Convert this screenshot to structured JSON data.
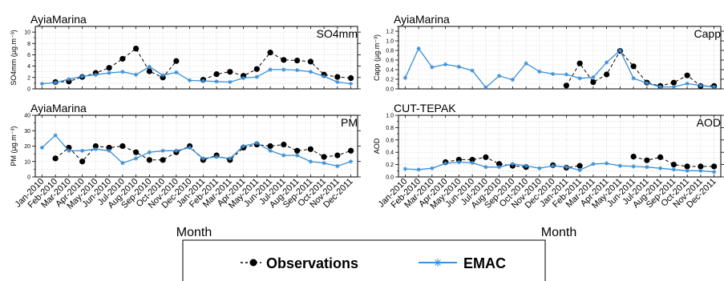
{
  "legend": {
    "observations_label": "Observations",
    "emac_label": "EMAC",
    "colors": {
      "observations": "#000000",
      "emac": "#3b8fd6"
    }
  },
  "x_axis": {
    "title": "Month",
    "tick_labels": [
      "Jan-2010",
      "Feb-2010",
      "Mar-2010",
      "Apr-2010",
      "May-2010",
      "Jun-2010",
      "Jul-2010",
      "Aug-2010",
      "Sep-2010",
      "Oct-2010",
      "Nov-2010",
      "Dec-2010",
      "Jan-2011",
      "Feb-2011",
      "Mar-2011",
      "Apr-2011",
      "May-2011",
      "Jun-2011",
      "Jul-2011",
      "Aug-2011",
      "Sep-2011",
      "Oct-2011",
      "Nov-2011",
      "Dec-2011"
    ]
  },
  "chart_data": [
    {
      "type": "line",
      "title_left": "AyiaMarina",
      "title_right": "SO4mm",
      "ylabel": "SO4mm (µg.m⁻³)",
      "ylim": [
        0,
        11
      ],
      "yticks": [
        0,
        2,
        4,
        6,
        8,
        10
      ],
      "grid": true,
      "x": [
        "Jan-2010",
        "Feb-2010",
        "Mar-2010",
        "Apr-2010",
        "May-2010",
        "Jun-2010",
        "Jul-2010",
        "Aug-2010",
        "Sep-2010",
        "Oct-2010",
        "Nov-2010",
        "Dec-2010",
        "Jan-2011",
        "Feb-2011",
        "Mar-2011",
        "Apr-2011",
        "May-2011",
        "Jun-2011",
        "Jul-2011",
        "Aug-2011",
        "Sep-2011",
        "Oct-2011",
        "Nov-2011",
        "Dec-2011"
      ],
      "series": [
        {
          "name": "Observations",
          "values": [
            null,
            1.2,
            1.3,
            2.1,
            2.8,
            3.7,
            5.3,
            7.1,
            3.1,
            2.0,
            4.9,
            null,
            1.6,
            2.6,
            3.0,
            2.3,
            3.5,
            6.4,
            5.1,
            5.0,
            4.8,
            2.5,
            2.1,
            1.9
          ]
        },
        {
          "name": "EMAC",
          "values": [
            0.9,
            1.1,
            1.7,
            2.2,
            2.5,
            2.8,
            3.0,
            2.5,
            3.9,
            2.4,
            2.9,
            1.5,
            1.4,
            1.3,
            1.2,
            1.9,
            2.1,
            3.4,
            3.4,
            3.3,
            3.0,
            2.2,
            1.2,
            0.9
          ]
        }
      ]
    },
    {
      "type": "line",
      "title_left": "AyiaMarina",
      "title_right": "Capp",
      "ylabel": "Capp (µg.m⁻³)",
      "ylim": [
        0,
        1.3
      ],
      "yticks": [
        0,
        0.2,
        0.4,
        0.6,
        0.8,
        1.0,
        1.2
      ],
      "grid": true,
      "x": [
        "Jan-2010",
        "Feb-2010",
        "Mar-2010",
        "Apr-2010",
        "May-2010",
        "Jun-2010",
        "Jul-2010",
        "Aug-2010",
        "Sep-2010",
        "Oct-2010",
        "Nov-2010",
        "Dec-2010",
        "Jan-2011",
        "Feb-2011",
        "Mar-2011",
        "Apr-2011",
        "May-2011",
        "Jun-2011",
        "Jul-2011",
        "Aug-2011",
        "Sep-2011",
        "Oct-2011",
        "Nov-2011",
        "Dec-2011"
      ],
      "series": [
        {
          "name": "Observations",
          "values": [
            null,
            null,
            null,
            null,
            null,
            null,
            null,
            null,
            null,
            null,
            null,
            null,
            0.07,
            0.53,
            0.14,
            0.3,
            0.79,
            0.47,
            0.13,
            0.06,
            0.13,
            0.28,
            0.06,
            0.06
          ]
        },
        {
          "name": "EMAC",
          "values": [
            0.23,
            0.84,
            0.45,
            0.51,
            0.46,
            0.38,
            0.03,
            0.27,
            0.19,
            0.53,
            0.36,
            0.31,
            0.3,
            0.22,
            0.24,
            0.55,
            0.8,
            0.22,
            0.12,
            0.04,
            0.04,
            0.11,
            0.07,
            0.04
          ]
        }
      ]
    },
    {
      "type": "line",
      "title_left": "AyiaMarina",
      "title_right": "PM",
      "ylabel": "PM (µg.m⁻³)",
      "ylim": [
        0,
        40
      ],
      "yticks": [
        0,
        10,
        20,
        30,
        40
      ],
      "grid": true,
      "x": [
        "Jan-2010",
        "Feb-2010",
        "Mar-2010",
        "Apr-2010",
        "May-2010",
        "Jun-2010",
        "Jul-2010",
        "Aug-2010",
        "Sep-2010",
        "Oct-2010",
        "Nov-2010",
        "Dec-2010",
        "Jan-2011",
        "Feb-2011",
        "Mar-2011",
        "Apr-2011",
        "May-2011",
        "Jun-2011",
        "Jul-2011",
        "Aug-2011",
        "Sep-2011",
        "Oct-2011",
        "Nov-2011",
        "Dec-2011"
      ],
      "series": [
        {
          "name": "Observations",
          "values": [
            null,
            12,
            19,
            10,
            20,
            19,
            20,
            16,
            11,
            11,
            16,
            20,
            11,
            14,
            11,
            19,
            21,
            20,
            21,
            17,
            18,
            13,
            14,
            17
          ]
        },
        {
          "name": "EMAC",
          "values": [
            19,
            27,
            17,
            17,
            18,
            17,
            9,
            12,
            16,
            17,
            17,
            19,
            12,
            13,
            12,
            20,
            22,
            17,
            14,
            14,
            10,
            9,
            7,
            10
          ]
        }
      ]
    },
    {
      "type": "line",
      "title_left": "CUT-TEPAK",
      "title_right": "AOD",
      "ylabel": "AOD",
      "ylim": [
        0,
        1.0
      ],
      "yticks": [
        0,
        0.2,
        0.4,
        0.6,
        0.8,
        1.0
      ],
      "grid": true,
      "x": [
        "Jan-2010",
        "Feb-2010",
        "Mar-2010",
        "Apr-2010",
        "May-2010",
        "Jun-2010",
        "Jul-2010",
        "Aug-2010",
        "Sep-2010",
        "Oct-2010",
        "Nov-2010",
        "Dec-2010",
        "Jan-2011",
        "Feb-2011",
        "Mar-2011",
        "Apr-2011",
        "May-2011",
        "Jun-2011",
        "Jul-2011",
        "Aug-2011",
        "Sep-2011",
        "Oct-2011",
        "Nov-2011",
        "Dec-2011"
      ],
      "series": [
        {
          "name": "Observations",
          "values": [
            null,
            null,
            null,
            0.24,
            0.28,
            0.28,
            0.32,
            0.21,
            0.18,
            0.16,
            null,
            0.19,
            0.15,
            0.18,
            null,
            null,
            null,
            0.33,
            0.27,
            0.32,
            0.2,
            0.17,
            0.17,
            0.17
          ]
        },
        {
          "name": "EMAC",
          "values": [
            0.13,
            0.12,
            0.14,
            0.22,
            0.24,
            0.23,
            0.16,
            0.16,
            0.21,
            0.18,
            0.14,
            0.18,
            0.16,
            0.11,
            0.21,
            0.22,
            0.18,
            0.17,
            0.16,
            0.14,
            0.12,
            0.1,
            0.1,
            0.08
          ]
        }
      ]
    }
  ]
}
